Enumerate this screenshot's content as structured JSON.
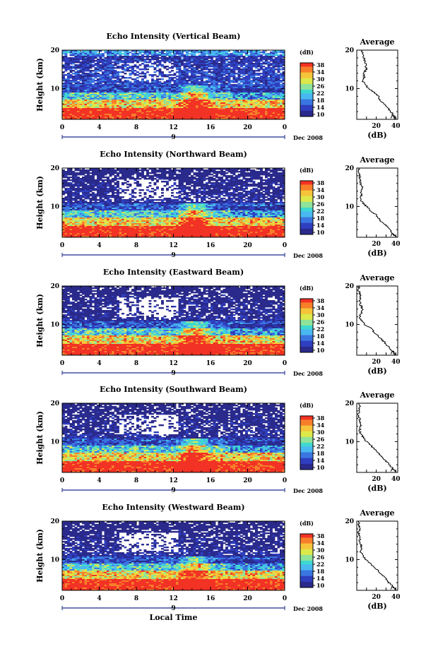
{
  "chart_data": [
    {
      "type": "heatmap",
      "title": "Echo Intensity (Vertical Beam)",
      "ylabel": "Height (km)",
      "xlabel": "",
      "x_ticks": [
        "0",
        "4",
        "8",
        "12",
        "16",
        "20",
        "0"
      ],
      "y_ticks": [
        "20",
        "10"
      ],
      "xlim": [
        0,
        24
      ],
      "ylim": [
        2,
        20
      ],
      "date_label": "9",
      "date_suffix": "Dec 2008",
      "colorbar": {
        "label": "(dB)",
        "ticks": [
          "38",
          "34",
          "30",
          "26",
          "22",
          "18",
          "14",
          "10"
        ],
        "range": [
          10,
          38
        ]
      },
      "profile": {
        "title": "Average",
        "xlabel": "(dB)",
        "x_ticks": [
          "20",
          "40"
        ],
        "y_ticks": [
          "20",
          "10"
        ],
        "xlim": [
          0,
          42
        ],
        "ylim": [
          2,
          20
        ],
        "points": [
          [
            40,
            2
          ],
          [
            38,
            3
          ],
          [
            35,
            4
          ],
          [
            32,
            5
          ],
          [
            28,
            6
          ],
          [
            24,
            7
          ],
          [
            22,
            8
          ],
          [
            18,
            9
          ],
          [
            12,
            10
          ],
          [
            9,
            11
          ],
          [
            6,
            12
          ],
          [
            8,
            13
          ],
          [
            7,
            14
          ],
          [
            10,
            15
          ],
          [
            9,
            16
          ],
          [
            9,
            17
          ],
          [
            7,
            18
          ],
          [
            6,
            19
          ],
          [
            5,
            20
          ]
        ]
      }
    },
    {
      "type": "heatmap",
      "title": "Echo Intensity (Northward Beam)",
      "ylabel": "Height (km)",
      "xlabel": "",
      "x_ticks": [
        "0",
        "4",
        "8",
        "12",
        "16",
        "20",
        "0"
      ],
      "y_ticks": [
        "20",
        "10"
      ],
      "xlim": [
        0,
        24
      ],
      "ylim": [
        2,
        20
      ],
      "date_label": "9",
      "date_suffix": "Dec 2008",
      "colorbar": {
        "label": "(dB)",
        "ticks": [
          "38",
          "34",
          "30",
          "26",
          "22",
          "18",
          "14",
          "10"
        ],
        "range": [
          10,
          38
        ]
      },
      "profile": {
        "title": "Average",
        "xlabel": "(dB)",
        "x_ticks": [
          "20",
          "40"
        ],
        "y_ticks": [
          "20",
          "10"
        ],
        "xlim": [
          0,
          42
        ],
        "ylim": [
          2,
          20
        ],
        "points": [
          [
            40,
            2
          ],
          [
            37,
            3
          ],
          [
            34,
            4
          ],
          [
            30,
            5
          ],
          [
            26,
            6
          ],
          [
            22,
            7
          ],
          [
            19,
            8
          ],
          [
            14,
            9
          ],
          [
            10,
            10
          ],
          [
            6,
            11
          ],
          [
            4,
            12
          ],
          [
            5,
            13
          ],
          [
            4,
            14
          ],
          [
            6,
            15
          ],
          [
            4,
            16
          ],
          [
            3,
            17
          ],
          [
            3,
            18
          ],
          [
            2,
            19
          ],
          [
            2,
            20
          ]
        ]
      }
    },
    {
      "type": "heatmap",
      "title": "Echo Intensity (Eastward Beam)",
      "ylabel": "Height (km)",
      "xlabel": "",
      "x_ticks": [
        "0",
        "4",
        "8",
        "12",
        "16",
        "20",
        "0"
      ],
      "y_ticks": [
        "20",
        "10"
      ],
      "xlim": [
        0,
        24
      ],
      "ylim": [
        2,
        20
      ],
      "date_label": "9",
      "date_suffix": "Dec 2008",
      "colorbar": {
        "label": "(dB)",
        "ticks": [
          "38",
          "34",
          "30",
          "26",
          "22",
          "18",
          "14",
          "10"
        ],
        "range": [
          10,
          38
        ]
      },
      "profile": {
        "title": "Average",
        "xlabel": "(dB)",
        "x_ticks": [
          "20",
          "40"
        ],
        "y_ticks": [
          "20",
          "10"
        ],
        "xlim": [
          0,
          42
        ],
        "ylim": [
          2,
          20
        ],
        "points": [
          [
            40,
            2
          ],
          [
            37,
            3
          ],
          [
            33,
            4
          ],
          [
            30,
            5
          ],
          [
            26,
            6
          ],
          [
            22,
            7
          ],
          [
            18,
            8
          ],
          [
            14,
            9
          ],
          [
            8,
            10
          ],
          [
            5,
            11
          ],
          [
            3,
            12
          ],
          [
            5,
            13
          ],
          [
            6,
            14
          ],
          [
            4,
            15
          ],
          [
            3,
            16
          ],
          [
            4,
            17
          ],
          [
            3,
            18
          ],
          [
            2,
            19
          ],
          [
            2,
            20
          ]
        ]
      }
    },
    {
      "type": "heatmap",
      "title": "Echo Intensity (Southward Beam)",
      "ylabel": "Height (km)",
      "xlabel": "",
      "x_ticks": [
        "0",
        "4",
        "8",
        "12",
        "16",
        "20",
        "0"
      ],
      "y_ticks": [
        "20",
        "10"
      ],
      "xlim": [
        0,
        24
      ],
      "ylim": [
        2,
        20
      ],
      "date_label": "9",
      "date_suffix": "Dec 2008",
      "colorbar": {
        "label": "(dB)",
        "ticks": [
          "38",
          "34",
          "30",
          "26",
          "22",
          "18",
          "14",
          "10"
        ],
        "range": [
          10,
          38
        ]
      },
      "profile": {
        "title": "Average",
        "xlabel": "(dB)",
        "x_ticks": [
          "20",
          "40"
        ],
        "y_ticks": [
          "20",
          "10"
        ],
        "xlim": [
          0,
          42
        ],
        "ylim": [
          2,
          20
        ],
        "points": [
          [
            40,
            2
          ],
          [
            37,
            3
          ],
          [
            33,
            4
          ],
          [
            30,
            5
          ],
          [
            26,
            6
          ],
          [
            22,
            7
          ],
          [
            18,
            8
          ],
          [
            15,
            9
          ],
          [
            10,
            10
          ],
          [
            7,
            11
          ],
          [
            4,
            12
          ],
          [
            3,
            13
          ],
          [
            4,
            14
          ],
          [
            3,
            15
          ],
          [
            3,
            16
          ],
          [
            2,
            17
          ],
          [
            2,
            18
          ],
          [
            3,
            19
          ],
          [
            2,
            20
          ]
        ]
      }
    },
    {
      "type": "heatmap",
      "title": "Echo Intensity (Westward Beam)",
      "ylabel": "Height (km)",
      "xlabel": "Local Time",
      "x_ticks": [
        "0",
        "4",
        "8",
        "12",
        "16",
        "20",
        "0"
      ],
      "y_ticks": [
        "20",
        "10"
      ],
      "xlim": [
        0,
        24
      ],
      "ylim": [
        2,
        20
      ],
      "date_label": "9",
      "date_suffix": "Dec 2008",
      "colorbar": {
        "label": "(dB)",
        "ticks": [
          "38",
          "34",
          "30",
          "26",
          "22",
          "18",
          "14",
          "10"
        ],
        "range": [
          10,
          38
        ]
      },
      "profile": {
        "title": "Average",
        "xlabel": "(dB)",
        "x_ticks": [
          "20",
          "40"
        ],
        "y_ticks": [
          "20",
          "10"
        ],
        "xlim": [
          0,
          42
        ],
        "ylim": [
          2,
          20
        ],
        "points": [
          [
            40,
            2
          ],
          [
            37,
            3
          ],
          [
            33,
            4
          ],
          [
            30,
            5
          ],
          [
            26,
            6
          ],
          [
            22,
            7
          ],
          [
            18,
            8
          ],
          [
            14,
            9
          ],
          [
            9,
            10
          ],
          [
            6,
            11
          ],
          [
            4,
            12
          ],
          [
            5,
            13
          ],
          [
            4,
            14
          ],
          [
            3,
            15
          ],
          [
            3,
            16
          ],
          [
            2,
            17
          ],
          [
            3,
            18
          ],
          [
            2,
            19
          ],
          [
            2,
            20
          ]
        ]
      }
    }
  ],
  "colors": {
    "scale": [
      "#2a2a8c",
      "#2f3fc0",
      "#3a76e0",
      "#49b8f0",
      "#3ed8d0",
      "#8fe39a",
      "#dde84a",
      "#f5c43a",
      "#f77f2a",
      "#f23224"
    ]
  },
  "footer": {
    "xlabel": "Local Time"
  }
}
